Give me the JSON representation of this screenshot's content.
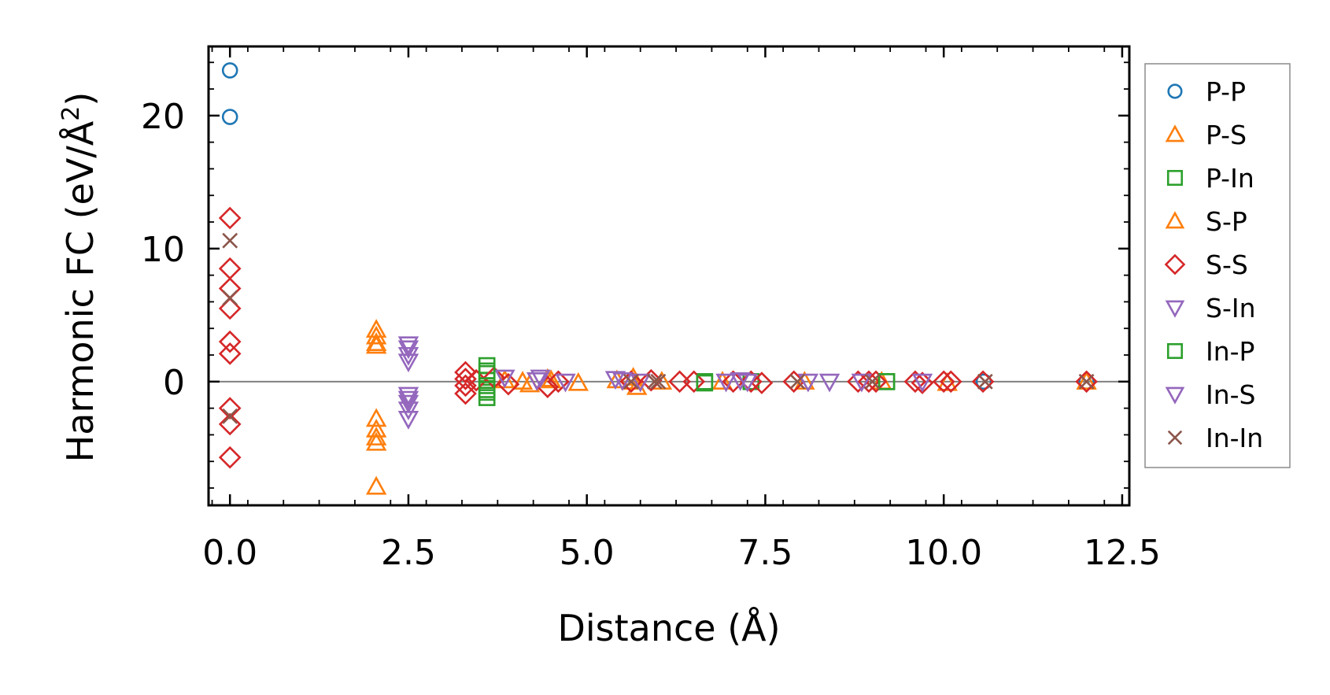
{
  "chart_data": {
    "type": "scatter",
    "xlabel": "Distance (Å)",
    "ylabel": "Harmonic FC (eV/Å",
    "ylabel_sup": "2",
    "ylabel_close": ")",
    "xlim": [
      -0.3,
      12.6
    ],
    "ylim": [
      -9.3,
      25.2
    ],
    "xticks": [
      0.0,
      2.5,
      5.0,
      7.5,
      10.0,
      12.5
    ],
    "xtick_labels": [
      "0.0",
      "2.5",
      "5.0",
      "7.5",
      "10.0",
      "12.5"
    ],
    "yticks": [
      0,
      10,
      20
    ],
    "ytick_labels": [
      "0",
      "10",
      "20"
    ],
    "reference_line_y": 0,
    "legend_position": "right",
    "series": [
      {
        "name": "P-P",
        "color": "#1f77b4",
        "marker": "circle",
        "x": [
          0.0,
          0.0,
          10.56,
          12.0
        ],
        "y": [
          23.4,
          19.9,
          0.0,
          0.0
        ]
      },
      {
        "name": "P-S",
        "color": "#ff7f0e",
        "marker": "triangle-up",
        "x": [
          2.05,
          2.05,
          2.05,
          2.05,
          2.05,
          2.05,
          2.05,
          2.05,
          4.1,
          4.5,
          4.88,
          5.42,
          5.62,
          6.9,
          9.13,
          10.05,
          12.0
        ],
        "y": [
          3.9,
          3.4,
          2.7,
          -2.8,
          -3.6,
          -4.2,
          -4.6,
          -7.9,
          0.0,
          0.1,
          -0.1,
          0.1,
          0.0,
          0.0,
          0.0,
          -0.1,
          0.0
        ]
      },
      {
        "name": "P-In",
        "color": "#2ca02c",
        "marker": "square",
        "x": [
          3.6,
          3.6,
          3.6,
          3.6,
          3.6,
          3.6,
          6.65,
          7.3,
          9.2
        ],
        "y": [
          1.2,
          0.6,
          0.1,
          -0.3,
          -0.8,
          -1.2,
          0.0,
          0.0,
          0.0
        ]
      },
      {
        "name": "S-P",
        "color": "#ff7f0e",
        "marker": "triangle-up",
        "x": [
          2.05,
          3.85,
          4.2,
          4.45,
          5.65,
          5.7,
          6.05,
          8.05
        ],
        "y": [
          2.9,
          0.1,
          -0.2,
          0.2,
          0.3,
          -0.4,
          0.0,
          0.0
        ]
      },
      {
        "name": "S-S",
        "color": "#d62728",
        "marker": "diamond",
        "x": [
          0.0,
          0.0,
          0.0,
          0.0,
          0.0,
          0.0,
          0.0,
          0.0,
          0.0,
          3.3,
          3.3,
          3.3,
          3.3,
          3.45,
          3.7,
          3.9,
          4.45,
          4.6,
          5.62,
          5.9,
          6.3,
          6.5,
          7.05,
          7.3,
          7.45,
          7.9,
          8.8,
          8.95,
          9.05,
          9.6,
          9.7,
          10.0,
          10.1,
          10.55,
          12.0
        ],
        "y": [
          12.3,
          8.5,
          7.0,
          5.5,
          3.0,
          2.1,
          -2.0,
          -3.2,
          -5.7,
          0.7,
          0.2,
          -0.3,
          -0.9,
          0.1,
          0.3,
          -0.2,
          -0.4,
          0.0,
          0.0,
          0.1,
          0.0,
          0.0,
          0.0,
          0.0,
          -0.1,
          0.0,
          0.0,
          0.0,
          0.0,
          0.0,
          -0.1,
          0.0,
          0.0,
          0.0,
          0.0
        ]
      },
      {
        "name": "S-In",
        "color": "#9467bd",
        "marker": "triangle-down",
        "x": [
          2.5,
          2.5,
          2.5,
          2.5,
          2.5,
          2.5,
          3.85,
          4.35,
          4.7,
          5.4,
          5.75,
          7.15,
          8.4
        ],
        "y": [
          2.5,
          2.0,
          1.5,
          -1.0,
          -1.6,
          -2.1,
          0.3,
          0.3,
          0.0,
          0.2,
          0.0,
          0.1,
          0.0
        ]
      },
      {
        "name": "In-P",
        "color": "#2ca02c",
        "marker": "square",
        "x": [
          3.6,
          3.6,
          6.65,
          9.2
        ],
        "y": [
          0.8,
          -0.6,
          -0.1,
          0.0
        ]
      },
      {
        "name": "In-S",
        "color": "#9467bd",
        "marker": "triangle-down",
        "x": [
          2.5,
          2.5,
          2.5,
          4.3,
          5.5,
          6.95,
          7.25,
          8.1,
          8.85,
          9.7
        ],
        "y": [
          2.8,
          -1.3,
          -2.8,
          0.1,
          0.1,
          0.0,
          0.0,
          0.0,
          0.0,
          0.0
        ]
      },
      {
        "name": "In-In",
        "color": "#8c564b",
        "marker": "x",
        "x": [
          0.0,
          0.0,
          0.0,
          5.62,
          5.95,
          6.0,
          7.95,
          9.0,
          10.58,
          12.0
        ],
        "y": [
          10.6,
          6.3,
          -2.6,
          0.0,
          0.0,
          0.0,
          0.0,
          0.0,
          0.0,
          0.0
        ]
      }
    ]
  }
}
